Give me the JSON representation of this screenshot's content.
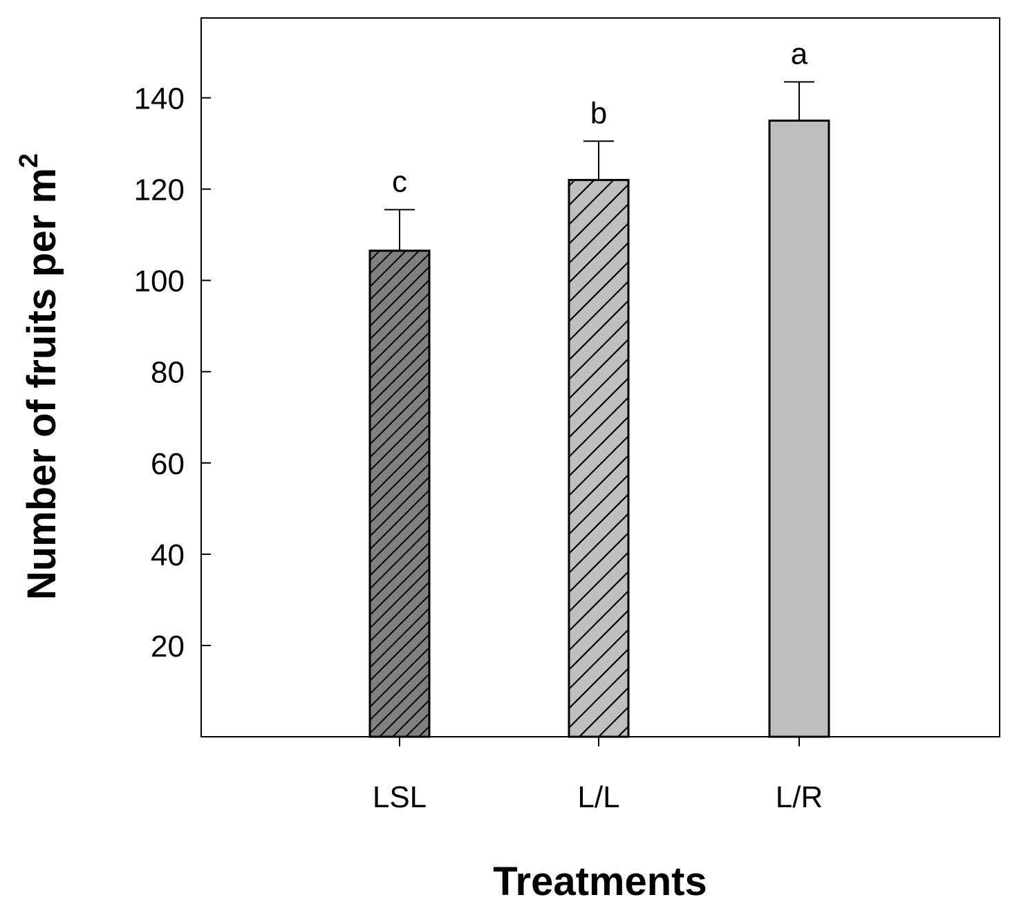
{
  "chart_data": {
    "type": "bar",
    "title": "",
    "xlabel": "Treatments",
    "ylabel": "Number of fruits per m",
    "ylabel_superscript": "2",
    "categories": [
      "LSL",
      "L/L",
      "L/R"
    ],
    "values": [
      106.5,
      122,
      135
    ],
    "errors": [
      9,
      8.5,
      8.5
    ],
    "significance_letters": [
      "c",
      "b",
      "a"
    ],
    "fills": [
      "#808080",
      "#bfbfbf",
      "#bfbfbf"
    ],
    "hatch": [
      "fine-diagonal",
      "diagonal",
      "none"
    ],
    "ylim": [
      0,
      157.5
    ],
    "yticks": [
      20,
      40,
      60,
      80,
      100,
      120,
      140
    ],
    "grid": false,
    "legend": "none"
  }
}
